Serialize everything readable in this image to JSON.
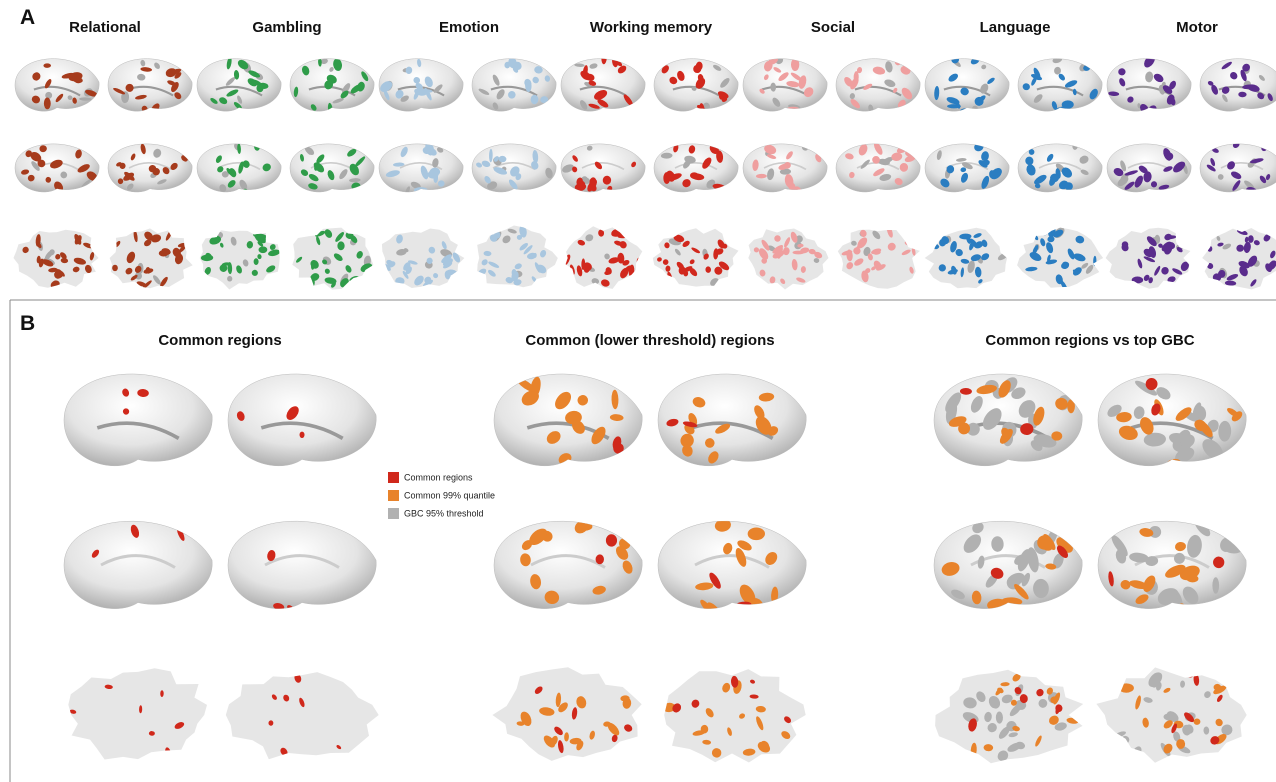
{
  "panel_a": {
    "label": "A",
    "tasks": [
      {
        "name": "Relational",
        "color": "#a63b1c"
      },
      {
        "name": "Gambling",
        "color": "#2f9c49"
      },
      {
        "name": "Emotion",
        "color": "#a8c6df"
      },
      {
        "name": "Working memory",
        "color": "#d1281d"
      },
      {
        "name": "Social",
        "color": "#ef9f9f"
      },
      {
        "name": "Language",
        "color": "#2a7dc1"
      },
      {
        "name": "Motor",
        "color": "#5a2c8c"
      }
    ]
  },
  "panel_b": {
    "label": "B",
    "groups": [
      {
        "title": "Common regions"
      },
      {
        "title": "Common (lower threshold) regions"
      },
      {
        "title": "Common regions vs top GBC"
      }
    ],
    "legend": [
      {
        "label": "Common regions",
        "color": "#d0281b"
      },
      {
        "label": "Common 99% quantile",
        "color": "#e8832b"
      },
      {
        "label": "GBC 95% threshold",
        "color": "#b1b1b1"
      }
    ]
  }
}
